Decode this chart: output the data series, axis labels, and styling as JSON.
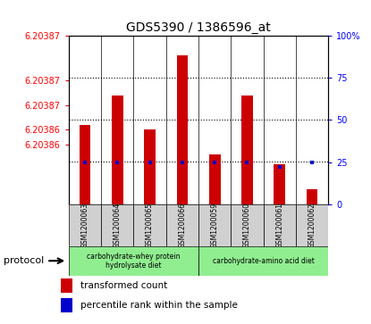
{
  "title": "GDS5390 / 1386596_at",
  "samples": [
    "GSM1200063",
    "GSM1200064",
    "GSM1200065",
    "GSM1200066",
    "GSM1200059",
    "GSM1200060",
    "GSM1200061",
    "GSM1200062"
  ],
  "transformed_count": [
    6.203864,
    6.20387,
    6.203863,
    6.203878,
    6.203858,
    6.20387,
    6.203856,
    6.203851
  ],
  "percentile_rank": [
    25,
    25,
    25,
    25,
    25,
    25,
    22,
    25
  ],
  "baseline": 6.203848,
  "ylim_left": [
    6.203848,
    6.203882
  ],
  "ylim_right": [
    0,
    100
  ],
  "ytick_left_vals": [
    6.20386,
    6.203863,
    6.203868,
    6.203873,
    6.203882
  ],
  "ytick_left_labels": [
    "6.20386",
    "6.20386",
    "6.20387",
    "6.20387",
    "6.20387"
  ],
  "ytick_right_vals": [
    0,
    25,
    50,
    75,
    100
  ],
  "ytick_right_labels": [
    "0",
    "25",
    "50",
    "75",
    "100%"
  ],
  "group1_samples": [
    0,
    1,
    2,
    3
  ],
  "group2_samples": [
    4,
    5,
    6,
    7
  ],
  "group1_label": "carbohydrate-whey protein\nhydrolysate diet",
  "group2_label": "carbohydrate-amino acid diet",
  "protocol_label": "protocol",
  "bar_color": "#cc0000",
  "dot_color": "#0000cc",
  "group_bg": "#90ee90",
  "sample_bg": "#d0d0d0",
  "legend_bar": "transformed count",
  "legend_dot": "percentile rank within the sample",
  "bar_width": 0.35
}
